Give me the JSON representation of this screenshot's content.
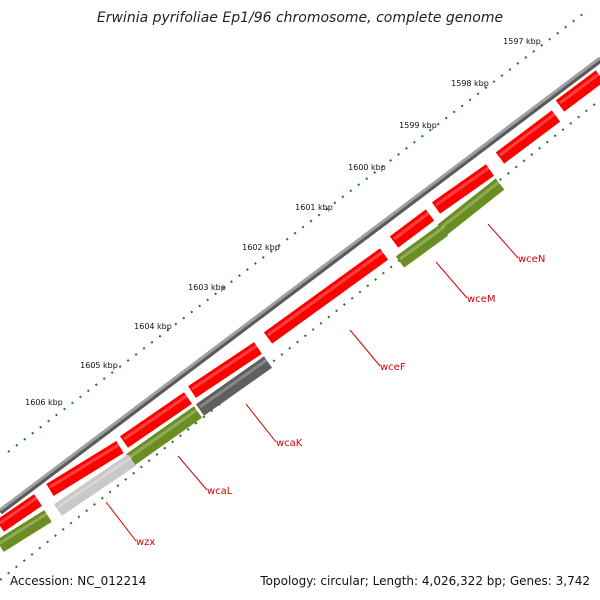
{
  "title": "Erwinia pyrifoliae Ep1/96 chromosome, complete genome",
  "footer": {
    "accession": "Accession: NC_012214",
    "summary": "Topology: circular; Length: 4,026,322 bp; Genes: 3,742"
  },
  "colors": {
    "backbone": "#8a8a8a",
    "forward_gene": "#ff0000",
    "green_gene": "#6b8e23",
    "dark_gene": "#5f5f5f",
    "light_gene": "#c8c8c8",
    "tick": "#1a7a1a",
    "label": "#d40000"
  },
  "ticks": [
    {
      "label": "1597 kbp"
    },
    {
      "label": "1598 kbp"
    },
    {
      "label": "1599 kbp"
    },
    {
      "label": "1600 kbp"
    },
    {
      "label": "1601 kbp"
    },
    {
      "label": "1602 kbp"
    },
    {
      "label": "1603 kbp"
    },
    {
      "label": "1604 kbp"
    },
    {
      "label": "1605 kbp"
    },
    {
      "label": "1606 kbp"
    }
  ],
  "gene_labels": [
    {
      "name": "wceN"
    },
    {
      "name": "wceM"
    },
    {
      "name": "wceF"
    },
    {
      "name": "wcaK"
    },
    {
      "name": "wcaL"
    },
    {
      "name": "wzx"
    }
  ]
}
